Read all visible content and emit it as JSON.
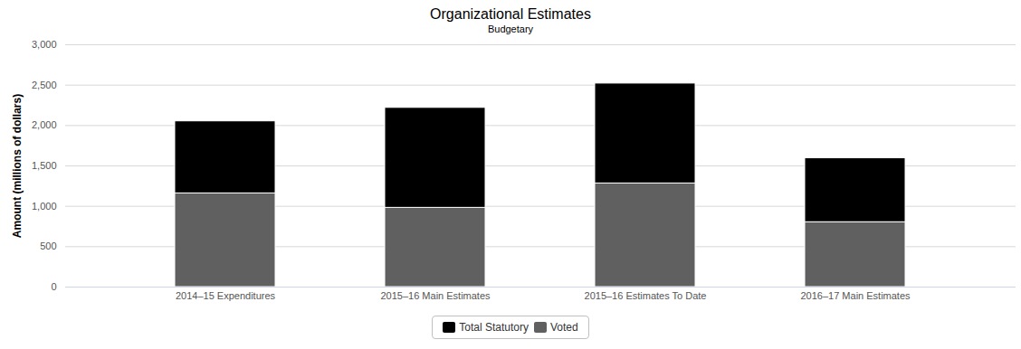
{
  "chart_data": {
    "type": "bar",
    "title": "Organizational Estimates",
    "subtitle": "Budgetary",
    "y_label": "Amount (millions of dollars)",
    "categories": [
      "2014–15 Expenditures",
      "2015–16 Main Estimates",
      "2015–16 Estimates To Date",
      "2016–17 Main Estimates"
    ],
    "series": [
      {
        "name": "Total Statutory",
        "color": "#000000",
        "values": [
          892,
          1238,
          1237,
          792
        ]
      },
      {
        "name": "Voted",
        "color": "#606060",
        "values": [
          1160,
          981,
          1283,
          803
        ]
      }
    ],
    "stacked": true,
    "ylim": [
      0,
      3000
    ],
    "yticks": [
      0,
      500,
      {
        "value": 1000,
        "label": "1,000"
      },
      {
        "value": 1500,
        "label": "1,500"
      },
      {
        "value": 2000,
        "label": "2,000"
      },
      {
        "value": 2500,
        "label": "2,500"
      },
      {
        "value": 3000,
        "label": "3,000"
      }
    ],
    "grid": true,
    "legend": "bottom"
  }
}
